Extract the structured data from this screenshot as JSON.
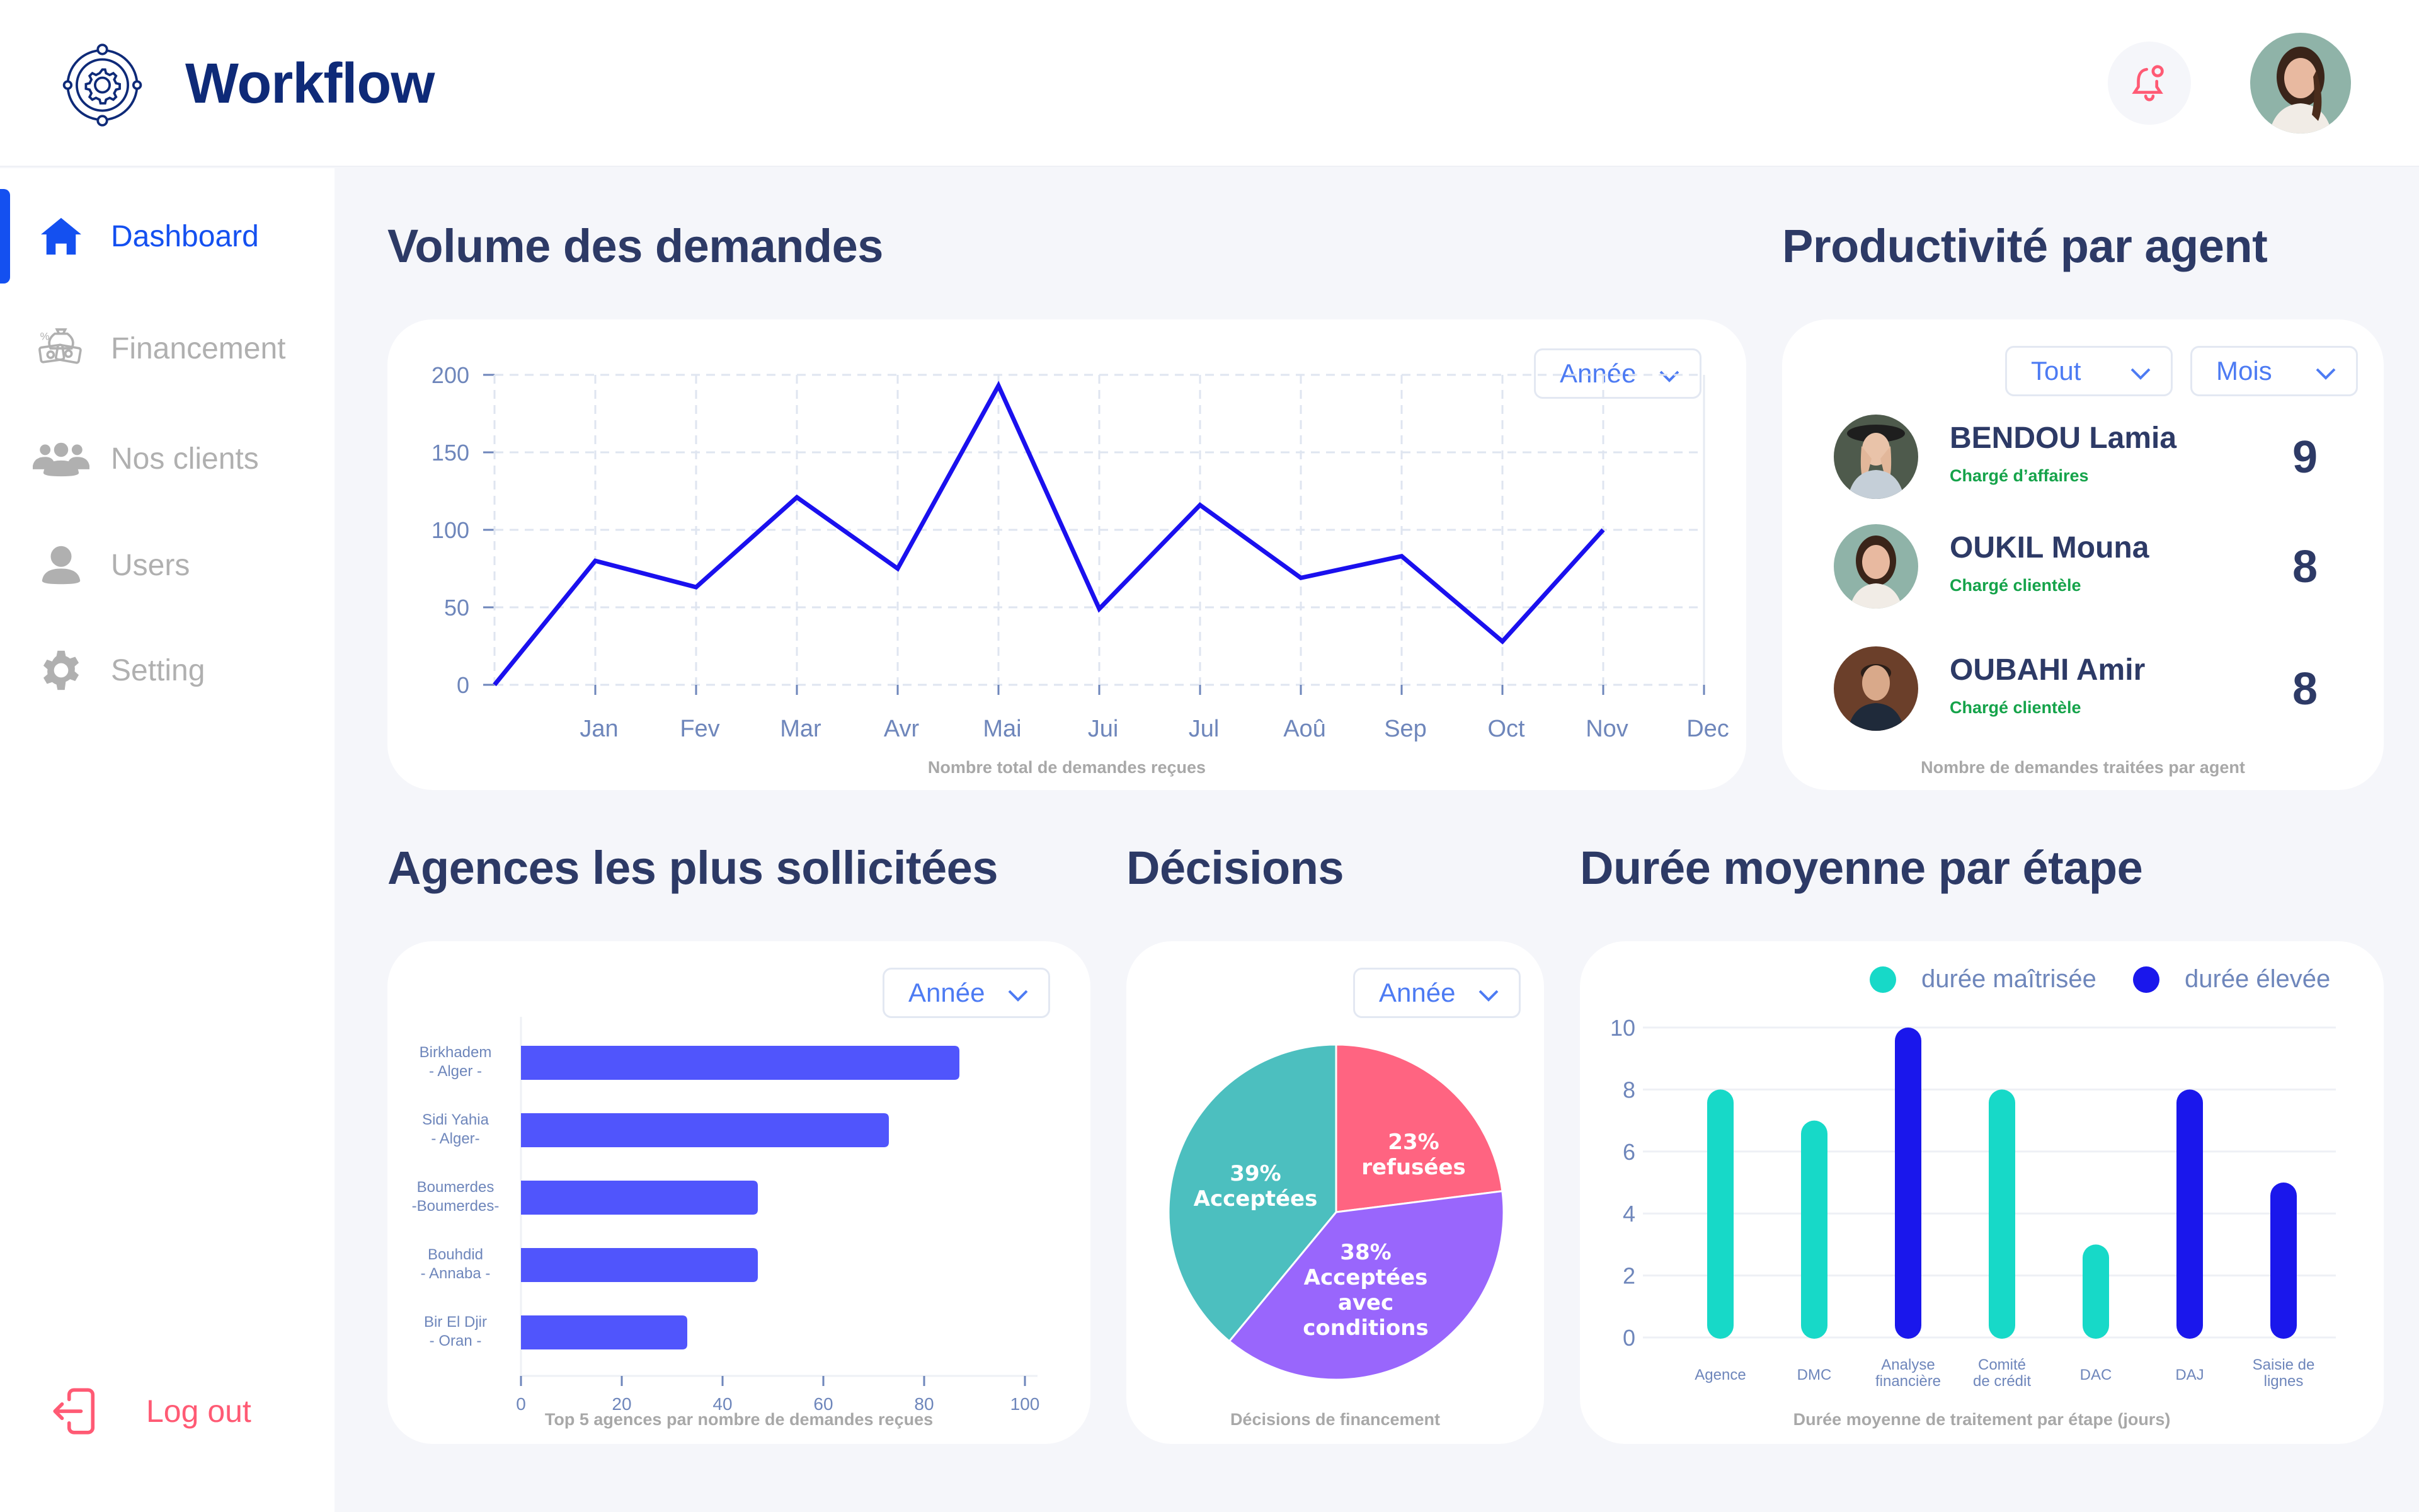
{
  "header": {
    "brand": "Workflow",
    "logo_icon": "workflow-gear-cycle-icon",
    "notification_icon": "bell-icon",
    "user_avatar": "user-avatar"
  },
  "sidebar": {
    "items": [
      {
        "label": "Dashboard",
        "icon": "home-icon",
        "active": true
      },
      {
        "label": "Financement",
        "icon": "money-bag-icon",
        "active": false
      },
      {
        "label": "Nos clients",
        "icon": "group-icon",
        "active": false
      },
      {
        "label": "Users",
        "icon": "user-icon",
        "active": false
      },
      {
        "label": "Setting",
        "icon": "gear-icon",
        "active": false
      }
    ],
    "logout": {
      "label": "Log out",
      "icon": "logout-icon"
    }
  },
  "volume": {
    "title": "Volume des demandes",
    "filter": "Année",
    "caption": "Nombre total de demandes reçues"
  },
  "productivity": {
    "title": "Productivité par agent",
    "filter_scope": "Tout",
    "filter_period": "Mois",
    "caption": "Nombre de demandes traitées par agent",
    "agents": [
      {
        "name": "BENDOU Lamia",
        "role": "Chargé d’affaires",
        "count": "9"
      },
      {
        "name": "OUKIL Mouna",
        "role": "Chargé clientèle",
        "count": "8"
      },
      {
        "name": "OUBAHI Amir",
        "role": "Chargé clientèle",
        "count": "8"
      }
    ]
  },
  "agences": {
    "title": "Agences les plus sollicitées",
    "filter": "Année",
    "caption": "Top 5 agences par nombre de demandes reçues"
  },
  "decisions": {
    "title": "Décisions",
    "filter": "Année",
    "caption": "Décisions de financement"
  },
  "duree": {
    "title": "Durée moyenne par étape",
    "caption": "Durée moyenne de traitement par étape (jours)",
    "legend": [
      {
        "label": "durée maîtrisée",
        "color": "#17d9c8"
      },
      {
        "label": "durée élevée",
        "color": "#1a17ec"
      }
    ]
  },
  "colors": {
    "accent": "#1450f0",
    "brand": "#0e2a78",
    "danger": "#ff5a74",
    "line": "#1a10ee",
    "bar": "#5055fc",
    "pie_teal": "#4cbfbf",
    "pie_pink": "#ff6481",
    "pie_purple": "#9966fc",
    "role_green": "#15a34a"
  },
  "chart_data": [
    {
      "type": "line",
      "title": "Volume des demandes",
      "xlabel": "Nombre total de demandes reçues",
      "ylabel": "",
      "categories": [
        "",
        "Jan",
        "Fev",
        "Mar",
        "Avr",
        "Mai",
        "Jui",
        "Jul",
        "Aoû",
        "Sep",
        "Oct",
        "Nov",
        "Dec"
      ],
      "values": [
        0,
        80,
        63,
        121,
        75,
        193,
        49,
        116,
        69,
        83,
        28,
        100,
        null
      ],
      "yticks": [
        0,
        50,
        100,
        150,
        200
      ],
      "ylim": [
        0,
        200
      ],
      "grid": true
    },
    {
      "type": "bar",
      "orientation": "horizontal",
      "title": "Agences les plus sollicitées",
      "xlabel": "Top 5 agences par nombre de demandes reçues",
      "categories": [
        "Birkhadem\n- Alger -",
        "Sidi Yahia\n- Alger-",
        "Boumerdes\n-Boumerdes-",
        "Bouhdid\n- Annaba -",
        "Bir El Djir\n- Oran -"
      ],
      "category_lines": [
        [
          "Birkhadem",
          "- Alger -"
        ],
        [
          "Sidi Yahia",
          "- Alger-"
        ],
        [
          "Boumerdes",
          "-Boumerdes-"
        ],
        [
          "Bouhdid",
          "- Annaba -"
        ],
        [
          "Bir El Djir",
          "- Oran -"
        ]
      ],
      "values": [
        87,
        73,
        47,
        47,
        33
      ],
      "xticks": [
        0,
        20,
        40,
        60,
        80,
        100
      ],
      "xlim": [
        0,
        100
      ]
    },
    {
      "type": "pie",
      "title": "Décisions",
      "caption": "Décisions de financement",
      "slices": [
        {
          "label": "refusées",
          "pct": 23,
          "display": [
            "23%",
            "refusées"
          ],
          "color": "#ff6481"
        },
        {
          "label": "Acceptées avec conditions",
          "pct": 38,
          "display": [
            "38%",
            "Acceptées",
            "avec",
            "conditions"
          ],
          "color": "#9966fc"
        },
        {
          "label": "Acceptées",
          "pct": 39,
          "display": [
            "39%",
            "Acceptées"
          ],
          "color": "#4cbfbf"
        }
      ]
    },
    {
      "type": "bar",
      "title": "Durée moyenne par étape",
      "xlabel": "Durée moyenne de traitement par étape (jours)",
      "categories": [
        "Agence",
        "DMC",
        "Analyse financière",
        "Comité de crédit",
        "DAC",
        "DAJ",
        "Saisie de lignes"
      ],
      "category_lines": [
        [
          "Agence"
        ],
        [
          "DMC"
        ],
        [
          "Analyse",
          "financière"
        ],
        [
          "Comité",
          "de crédit"
        ],
        [
          "DAC"
        ],
        [
          "DAJ"
        ],
        [
          "Saisie de",
          "lignes"
        ]
      ],
      "values": [
        8,
        7,
        10,
        8,
        3,
        8,
        5
      ],
      "series_membership": [
        "durée maîtrisée",
        "durée maîtrisée",
        "durée élevée",
        "durée maîtrisée",
        "durée maîtrisée",
        "durée élevée",
        "durée élevée"
      ],
      "yticks": [
        0,
        2,
        4,
        6,
        8,
        10
      ],
      "ylim": [
        0,
        10
      ],
      "legend": [
        "durée maîtrisée",
        "durée élevée"
      ],
      "legend_position": "top-right"
    }
  ]
}
